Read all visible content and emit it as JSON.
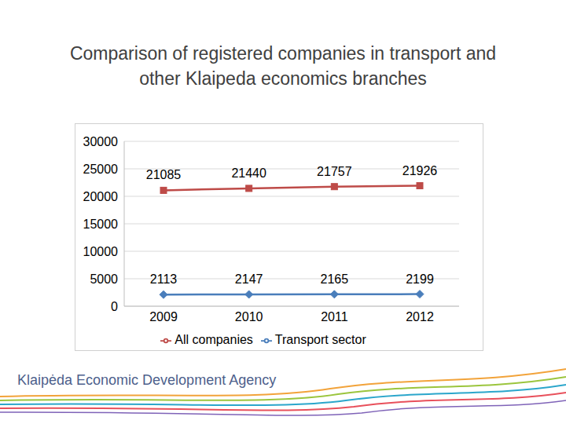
{
  "chart_data": {
    "type": "line",
    "title": "Comparison of registered companies in transport and other Klaipeda economics branches",
    "annotations": [
      "Klaipėda Economic Development Agency"
    ],
    "categories": [
      "2009",
      "2010",
      "2011",
      "2012"
    ],
    "series": [
      {
        "name": "Transport sector",
        "color": "#4a7ebb",
        "marker": "diamond",
        "values": [
          2113,
          2147,
          2165,
          2199
        ]
      },
      {
        "name": "All companies",
        "color": "#be4b48",
        "marker": "square",
        "values": [
          21085,
          21440,
          21757,
          21926
        ]
      }
    ],
    "ylim": [
      0,
      30000
    ],
    "yticks": [
      0,
      5000,
      10000,
      15000,
      20000,
      25000,
      30000
    ],
    "grid": true,
    "data_labels": true,
    "legend": "bottom"
  }
}
